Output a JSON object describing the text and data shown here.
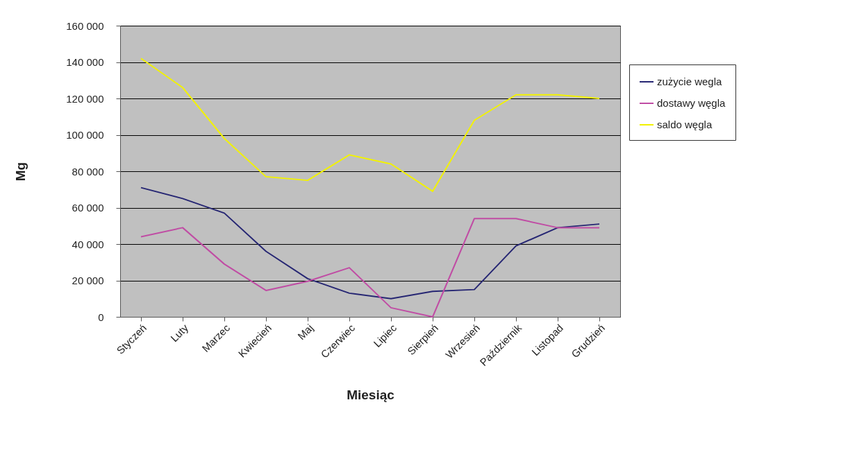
{
  "chart_data": {
    "type": "line",
    "xlabel": "Miesiąc",
    "ylabel": "Mg",
    "categories": [
      "Styczeń",
      "Luty",
      "Marzec",
      "Kwiecień",
      "Maj",
      "Czerwiec",
      "Lipiec",
      "Sierpień",
      "Wrzesień",
      "Październik",
      "Listopad",
      "Grudzień"
    ],
    "series": [
      {
        "name": "zużycie wegla",
        "color": "#262673",
        "values": [
          71000,
          65000,
          57000,
          36000,
          21000,
          13000,
          10000,
          14000,
          15000,
          39000,
          49000,
          51000
        ]
      },
      {
        "name": "dostawy węgla",
        "color": "#c04ca4",
        "values": [
          44000,
          49000,
          29000,
          14500,
          19500,
          27000,
          5000,
          0,
          54000,
          54000,
          49000,
          49000
        ]
      },
      {
        "name": "saldo węgla",
        "color": "#f2f200",
        "values": [
          142000,
          126000,
          98000,
          77000,
          75000,
          89000,
          84000,
          69000,
          108000,
          122000,
          122000,
          120000
        ]
      }
    ],
    "ylim": [
      0,
      160000
    ],
    "yticks": [
      0,
      {
        "value": 20000,
        "label": "20 000"
      },
      {
        "value": 40000,
        "label": "40 000"
      },
      {
        "value": 60000,
        "label": "60 000"
      },
      {
        "value": 80000,
        "label": "80 000"
      },
      {
        "value": 100000,
        "label": "100 000"
      },
      {
        "value": 120000,
        "label": "120 000"
      },
      {
        "value": 140000,
        "label": "140 000"
      },
      {
        "value": 160000,
        "label": "160 000"
      }
    ],
    "grid": "y",
    "legend": "top right",
    "line_style": "solid"
  }
}
